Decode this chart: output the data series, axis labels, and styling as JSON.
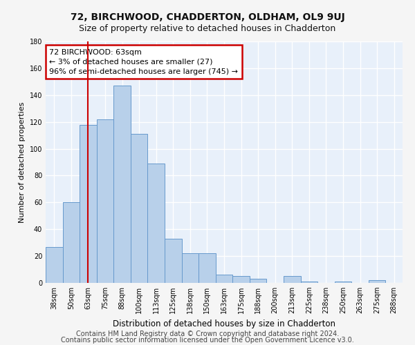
{
  "title": "72, BIRCHWOOD, CHADDERTON, OLDHAM, OL9 9UJ",
  "subtitle": "Size of property relative to detached houses in Chadderton",
  "xlabel": "Distribution of detached houses by size in Chadderton",
  "ylabel": "Number of detached properties",
  "categories": [
    "38sqm",
    "50sqm",
    "63sqm",
    "75sqm",
    "88sqm",
    "100sqm",
    "113sqm",
    "125sqm",
    "138sqm",
    "150sqm",
    "163sqm",
    "175sqm",
    "188sqm",
    "200sqm",
    "213sqm",
    "225sqm",
    "238sqm",
    "250sqm",
    "263sqm",
    "275sqm",
    "288sqm"
  ],
  "values": [
    27,
    60,
    118,
    122,
    147,
    111,
    89,
    33,
    22,
    22,
    6,
    5,
    3,
    0,
    5,
    1,
    0,
    1,
    0,
    2,
    0
  ],
  "bar_color": "#b8d0ea",
  "bar_edge_color": "#6699cc",
  "marker_index": 2,
  "annotation_text": "72 BIRCHWOOD: 63sqm\n← 3% of detached houses are smaller (27)\n96% of semi-detached houses are larger (745) →",
  "annotation_box_color": "#ffffff",
  "annotation_box_edge": "#cc0000",
  "vline_color": "#cc0000",
  "ylim": [
    0,
    180
  ],
  "yticks": [
    0,
    20,
    40,
    60,
    80,
    100,
    120,
    140,
    160,
    180
  ],
  "footer1": "Contains HM Land Registry data © Crown copyright and database right 2024.",
  "footer2": "Contains public sector information licensed under the Open Government Licence v3.0.",
  "bg_color": "#e8f0fa",
  "fig_bg_color": "#f5f5f5",
  "grid_color": "#ffffff",
  "title_fontsize": 10,
  "subtitle_fontsize": 9,
  "ylabel_fontsize": 8,
  "xlabel_fontsize": 8.5,
  "tick_fontsize": 7,
  "annotation_fontsize": 8,
  "footer_fontsize": 7
}
